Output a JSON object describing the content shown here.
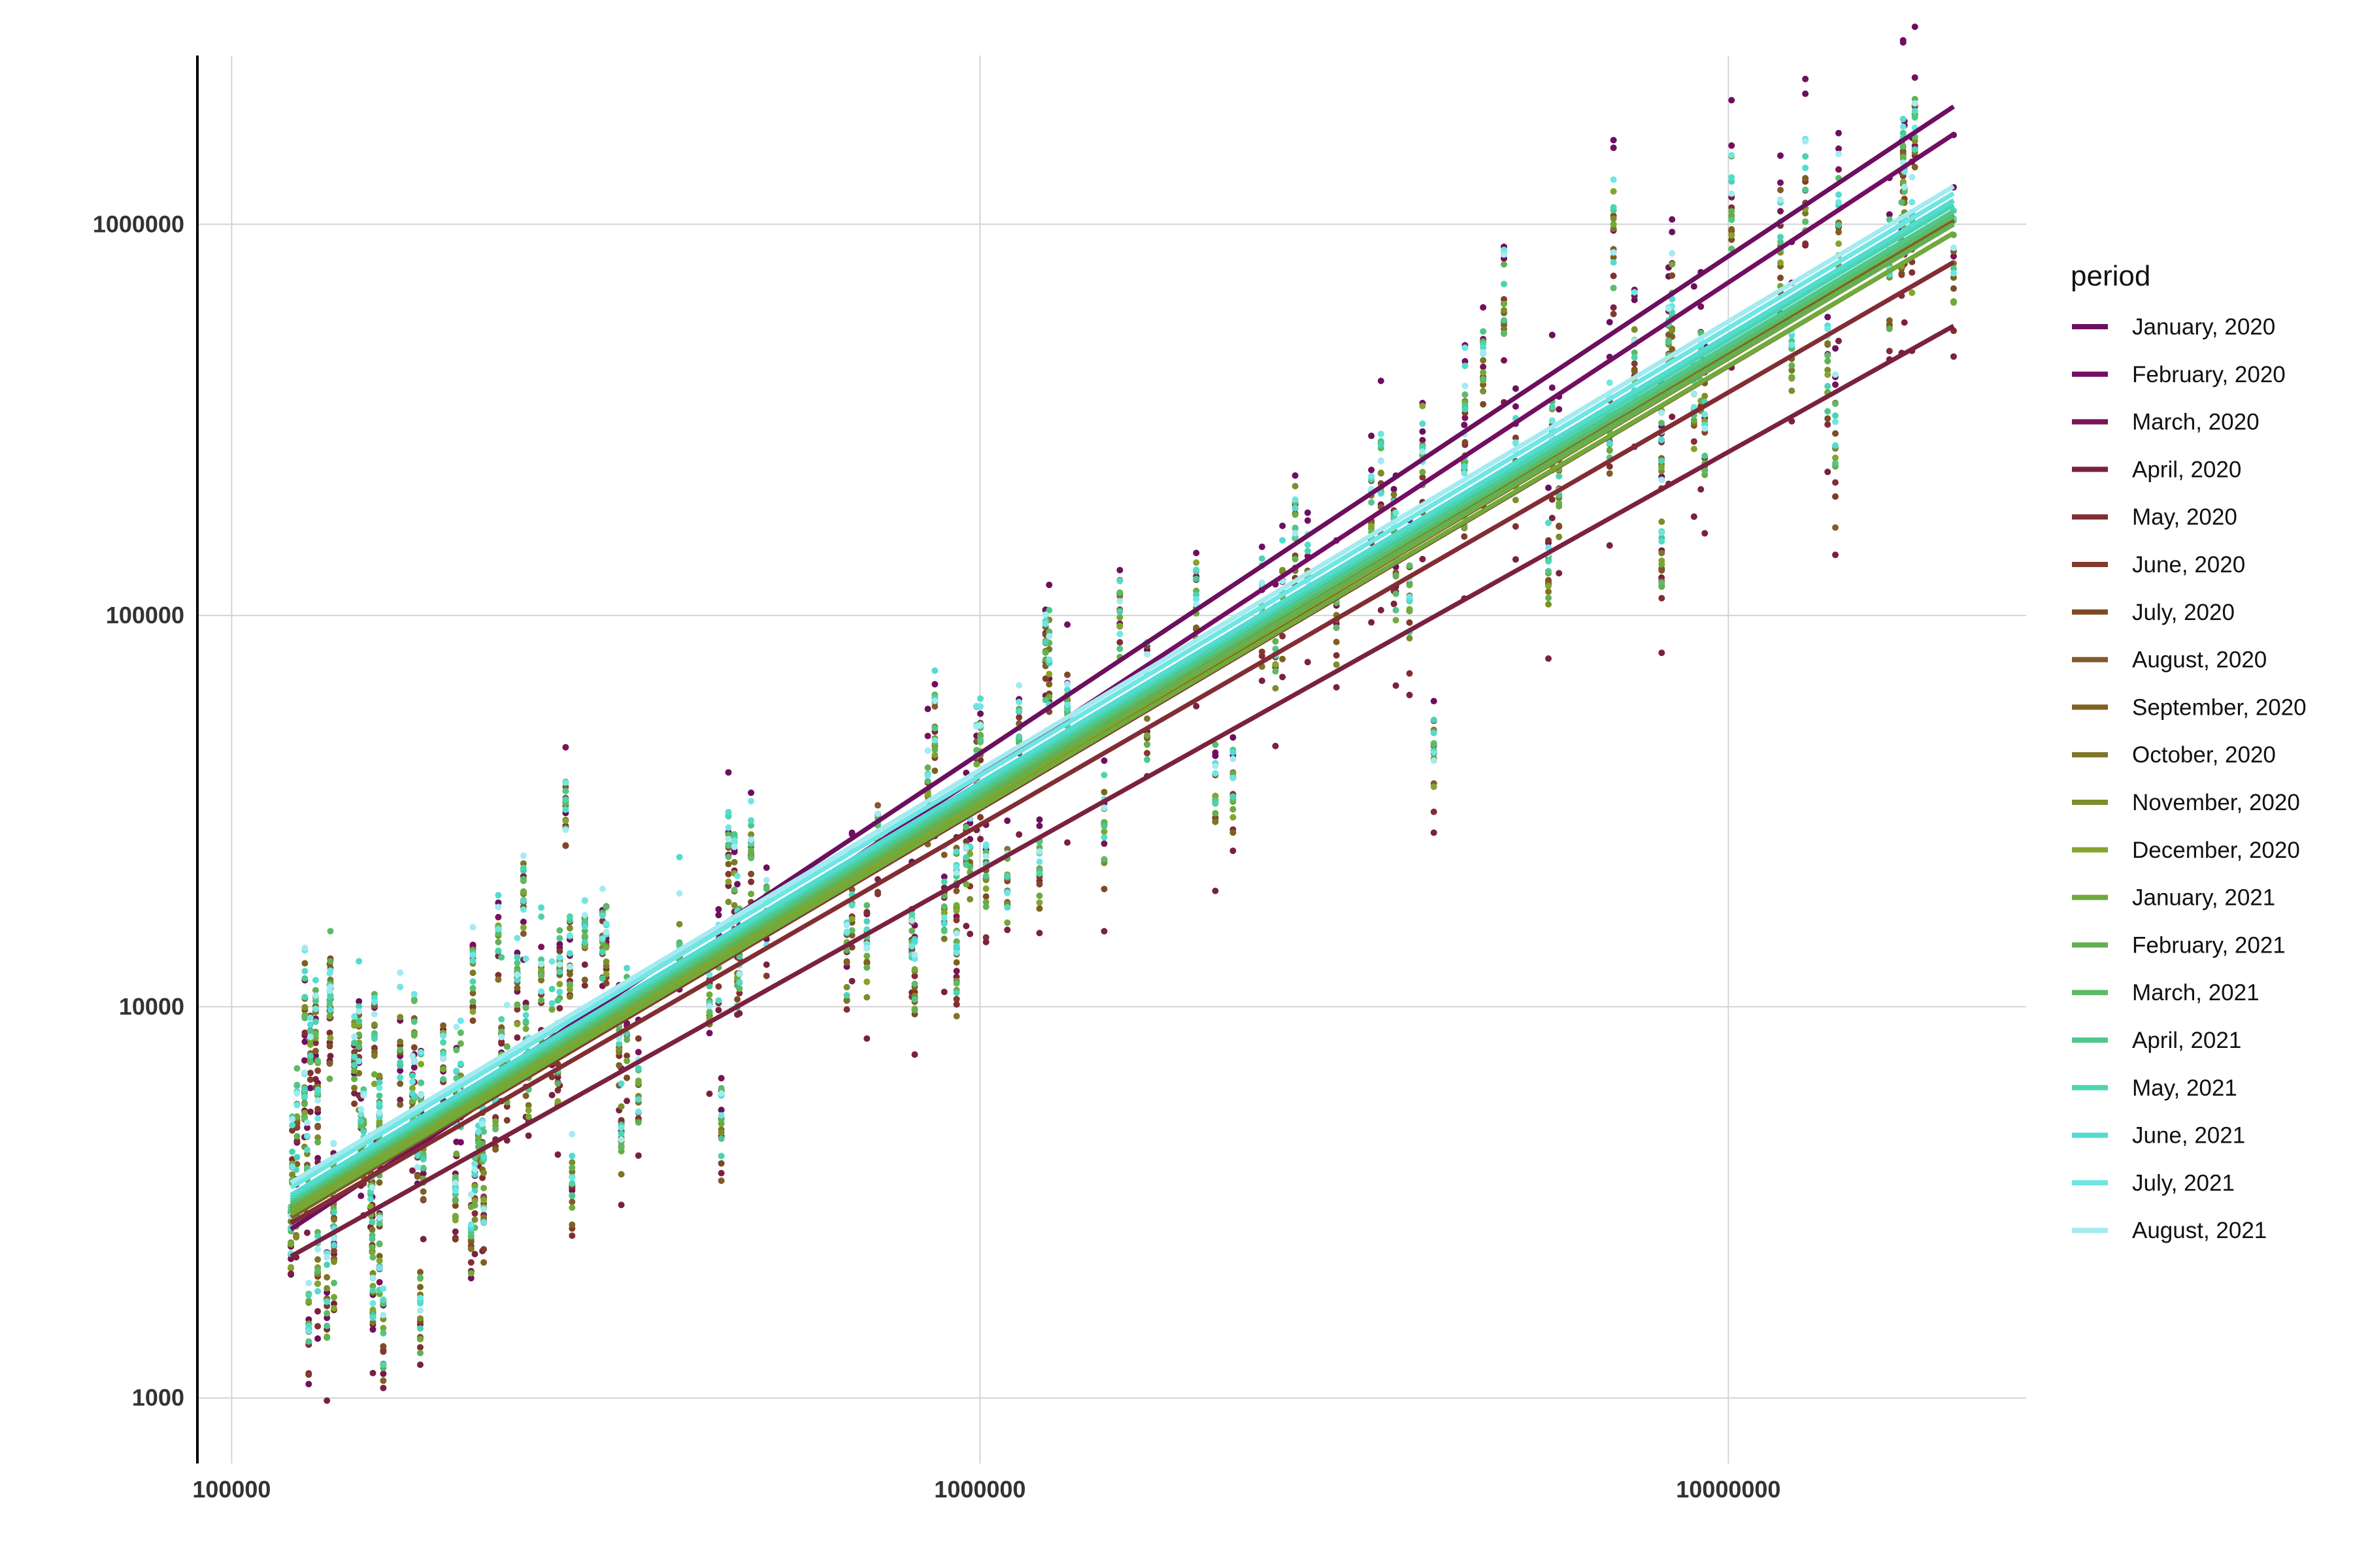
{
  "chart_data": {
    "type": "scatter",
    "title": "",
    "xlabel": "",
    "ylabel": "",
    "x_scale": "log10",
    "y_scale": "log10",
    "xlim": [
      90000,
      25000000
    ],
    "ylim": [
      680,
      2700000
    ],
    "x_ticks": [
      100000,
      1000000,
      10000000
    ],
    "x_tick_labels": [
      "100000",
      "1000000",
      "10000000"
    ],
    "y_ticks": [
      1000,
      10000,
      100000,
      1000000
    ],
    "y_tick_labels": [
      "1000",
      "10000",
      "100000",
      "1000000"
    ],
    "grid": true,
    "legend": {
      "title": "period",
      "position": "right"
    },
    "fit": "linear regression per series in log-log space",
    "x_range_of_points": [
      120000,
      20000000
    ],
    "series": [
      {
        "name": "January, 2020",
        "color": "#6B0F5E",
        "fit_start": [
          120000,
          3000
        ],
        "fit_end": [
          20000000,
          2000000
        ]
      },
      {
        "name": "February, 2020",
        "color": "#730E62",
        "fit_start": [
          120000,
          2700
        ],
        "fit_end": [
          20000000,
          1700000
        ]
      },
      {
        "name": "March, 2020",
        "color": "#7A1455",
        "fit_start": [
          120000,
          3100
        ],
        "fit_end": [
          20000000,
          1150000
        ]
      },
      {
        "name": "April, 2020",
        "color": "#7A2140",
        "fit_start": [
          120000,
          2300
        ],
        "fit_end": [
          20000000,
          550000
        ]
      },
      {
        "name": "May, 2020",
        "color": "#822D34",
        "fit_start": [
          120000,
          2800
        ],
        "fit_end": [
          20000000,
          800000
        ]
      },
      {
        "name": "June, 2020",
        "color": "#823A2B",
        "fit_start": [
          120000,
          2900
        ],
        "fit_end": [
          20000000,
          950000
        ]
      },
      {
        "name": "July, 2020",
        "color": "#7E4A26",
        "fit_start": [
          120000,
          2950
        ],
        "fit_end": [
          20000000,
          1000000
        ]
      },
      {
        "name": "August, 2020",
        "color": "#805A2A",
        "fit_start": [
          120000,
          3000
        ],
        "fit_end": [
          20000000,
          1020000
        ]
      },
      {
        "name": "September, 2020",
        "color": "#7E6121",
        "fit_start": [
          120000,
          2900
        ],
        "fit_end": [
          20000000,
          1030000
        ]
      },
      {
        "name": "October, 2020",
        "color": "#7D7626",
        "fit_start": [
          120000,
          3000
        ],
        "fit_end": [
          20000000,
          1050000
        ]
      },
      {
        "name": "November, 2020",
        "color": "#7C8D2A",
        "fit_start": [
          120000,
          3050
        ],
        "fit_end": [
          20000000,
          1060000
        ]
      },
      {
        "name": "December, 2020",
        "color": "#84A42C",
        "fit_start": [
          120000,
          3000
        ],
        "fit_end": [
          20000000,
          1000000
        ]
      },
      {
        "name": "January, 2021",
        "color": "#6FAA3A",
        "fit_start": [
          120000,
          2950
        ],
        "fit_end": [
          20000000,
          950000
        ]
      },
      {
        "name": "February, 2021",
        "color": "#63B052",
        "fit_start": [
          120000,
          3100
        ],
        "fit_end": [
          20000000,
          1000000
        ]
      },
      {
        "name": "March, 2021",
        "color": "#5BBB68",
        "fit_start": [
          120000,
          3150
        ],
        "fit_end": [
          20000000,
          1050000
        ]
      },
      {
        "name": "April, 2021",
        "color": "#4FC78C",
        "fit_start": [
          120000,
          3200
        ],
        "fit_end": [
          20000000,
          1080000
        ]
      },
      {
        "name": "May, 2021",
        "color": "#4BD4B2",
        "fit_start": [
          120000,
          3250
        ],
        "fit_end": [
          20000000,
          1120000
        ]
      },
      {
        "name": "June, 2021",
        "color": "#52DCD0",
        "fit_start": [
          120000,
          3300
        ],
        "fit_end": [
          20000000,
          1150000
        ]
      },
      {
        "name": "July, 2021",
        "color": "#6EE6E4",
        "fit_start": [
          120000,
          3450
        ],
        "fit_end": [
          20000000,
          1200000
        ]
      },
      {
        "name": "August, 2021",
        "color": "#A3EBF0",
        "fit_start": [
          120000,
          3550
        ],
        "fit_end": [
          20000000,
          1250000
        ]
      }
    ]
  }
}
